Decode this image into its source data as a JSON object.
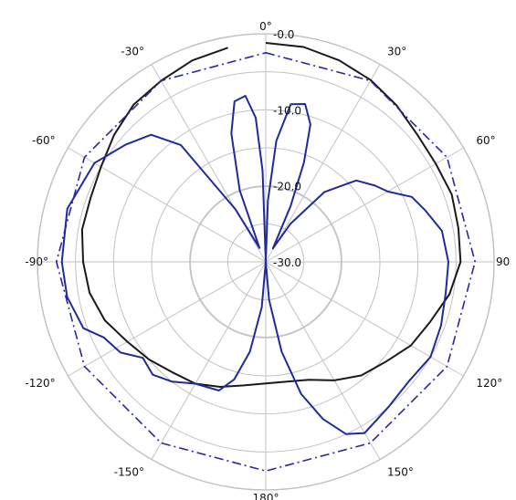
{
  "chart_data": {
    "type": "line",
    "subtype": "polar",
    "title": "",
    "angle_unit": "degrees",
    "angle_zero": "top",
    "angle_direction": "clockwise",
    "angle_tick_labels": [
      {
        "angle": 0,
        "label": "0°"
      },
      {
        "angle": 30,
        "label": "30°"
      },
      {
        "angle": 60,
        "label": "60°"
      },
      {
        "angle": 90,
        "label": "90"
      },
      {
        "angle": 120,
        "label": "120°"
      },
      {
        "angle": 150,
        "label": "150°"
      },
      {
        "angle": 180,
        "label": "180°"
      },
      {
        "angle": -150,
        "label": "-150°"
      },
      {
        "angle": -120,
        "label": "-120°"
      },
      {
        "angle": -90,
        "label": "-90°"
      },
      {
        "angle": -60,
        "label": "-60°"
      },
      {
        "angle": -30,
        "label": "-30°"
      }
    ],
    "radial_range": [
      -30,
      0
    ],
    "radial_tick_labels": [
      {
        "value": 0,
        "label": "-0.0"
      },
      {
        "value": -10,
        "label": "-10.0"
      },
      {
        "value": -20,
        "label": "-20.0"
      },
      {
        "value": -30,
        "label": "-30.0"
      }
    ],
    "radial_rings": [
      -30,
      -25,
      -20,
      -15,
      -10,
      -5,
      0
    ],
    "grid": true,
    "spokes_every_deg": 30,
    "series": [
      {
        "color": "#1a1a1a",
        "style": "solid",
        "points": [
          [
            0,
            -1.2
          ],
          [
            10,
            -1.3
          ],
          [
            20,
            -1.8
          ],
          [
            30,
            -2.4
          ],
          [
            40,
            -3.2
          ],
          [
            50,
            -4.0
          ],
          [
            60,
            -4.2
          ],
          [
            70,
            -4.0
          ],
          [
            80,
            -4.3
          ],
          [
            90,
            -4.4
          ],
          [
            100,
            -5.5
          ],
          [
            110,
            -7.0
          ],
          [
            120,
            -8.0
          ],
          [
            130,
            -9.5
          ],
          [
            140,
            -10.5
          ],
          [
            150,
            -12.0
          ],
          [
            160,
            -13.5
          ],
          [
            170,
            -14.0
          ],
          [
            180,
            -14.0
          ],
          [
            190,
            -13.5
          ],
          [
            200,
            -12.5
          ],
          [
            210,
            -11.5
          ],
          [
            220,
            -11.0
          ],
          [
            230,
            -10.0
          ],
          [
            240,
            -9.0
          ],
          [
            250,
            -7.5
          ],
          [
            260,
            -6.5
          ],
          [
            270,
            -6.0
          ],
          [
            280,
            -5.5
          ],
          [
            290,
            -5.5
          ],
          [
            300,
            -5.0
          ],
          [
            310,
            -4.0
          ],
          [
            320,
            -3.0
          ],
          [
            330,
            -2.5
          ],
          [
            340,
            -1.8
          ],
          [
            350,
            -1.4
          ]
        ]
      },
      {
        "color": "#1f2b9c",
        "style": "solid",
        "points": [
          [
            0,
            -30
          ],
          [
            2,
            -22
          ],
          [
            5,
            -14
          ],
          [
            9,
            -9.0
          ],
          [
            14,
            -8.6
          ],
          [
            18,
            -11
          ],
          [
            21,
            -16
          ],
          [
            24,
            -22
          ],
          [
            28,
            -28
          ],
          [
            33,
            -24
          ],
          [
            40,
            -18
          ],
          [
            48,
            -14
          ],
          [
            55,
            -12.5
          ],
          [
            60,
            -11.5
          ],
          [
            66,
            -9.0
          ],
          [
            72,
            -8.0
          ],
          [
            80,
            -6.5
          ],
          [
            90,
            -6.0
          ],
          [
            100,
            -6.0
          ],
          [
            110,
            -5.5
          ],
          [
            120,
            -5.0
          ],
          [
            130,
            -5.5
          ],
          [
            140,
            -5.0
          ],
          [
            150,
            -4.0
          ],
          [
            155,
            -5.0
          ],
          [
            160,
            -8.0
          ],
          [
            165,
            -12
          ],
          [
            170,
            -18
          ],
          [
            175,
            -25
          ],
          [
            180,
            -30
          ],
          [
            185,
            -24
          ],
          [
            190,
            -18
          ],
          [
            195,
            -14
          ],
          [
            200,
            -12
          ],
          [
            210,
            -11.5
          ],
          [
            218,
            -10.0
          ],
          [
            225,
            -9.0
          ],
          [
            232,
            -9.5
          ],
          [
            238,
            -7.5
          ],
          [
            245,
            -6.5
          ],
          [
            250,
            -4.5
          ],
          [
            260,
            -3.5
          ],
          [
            270,
            -3.2
          ],
          [
            285,
            -3.0
          ],
          [
            300,
            -4.0
          ],
          [
            310,
            -6.0
          ],
          [
            318,
            -7.5
          ],
          [
            324,
            -11.0
          ],
          [
            330,
            -22.0
          ],
          [
            336,
            -28
          ],
          [
            340,
            -20
          ],
          [
            345,
            -12.5
          ],
          [
            349,
            -8.5
          ],
          [
            353,
            -8.0
          ],
          [
            356,
            -11
          ],
          [
            358,
            -18
          ],
          [
            360,
            -30
          ]
        ]
      },
      {
        "color": "#2626a8",
        "style": "dash-dot",
        "points": [
          [
            0,
            -2.5
          ],
          [
            30,
            -2.5
          ],
          [
            60,
            -2.5
          ],
          [
            90,
            -2.5
          ],
          [
            120,
            -2.5
          ],
          [
            150,
            -2.5
          ],
          [
            180,
            -2.5
          ],
          [
            210,
            -2.5
          ],
          [
            240,
            -2.5
          ],
          [
            270,
            -2.5
          ],
          [
            300,
            -2.5
          ],
          [
            330,
            -2.5
          ],
          [
            360,
            -2.5
          ]
        ]
      }
    ]
  }
}
